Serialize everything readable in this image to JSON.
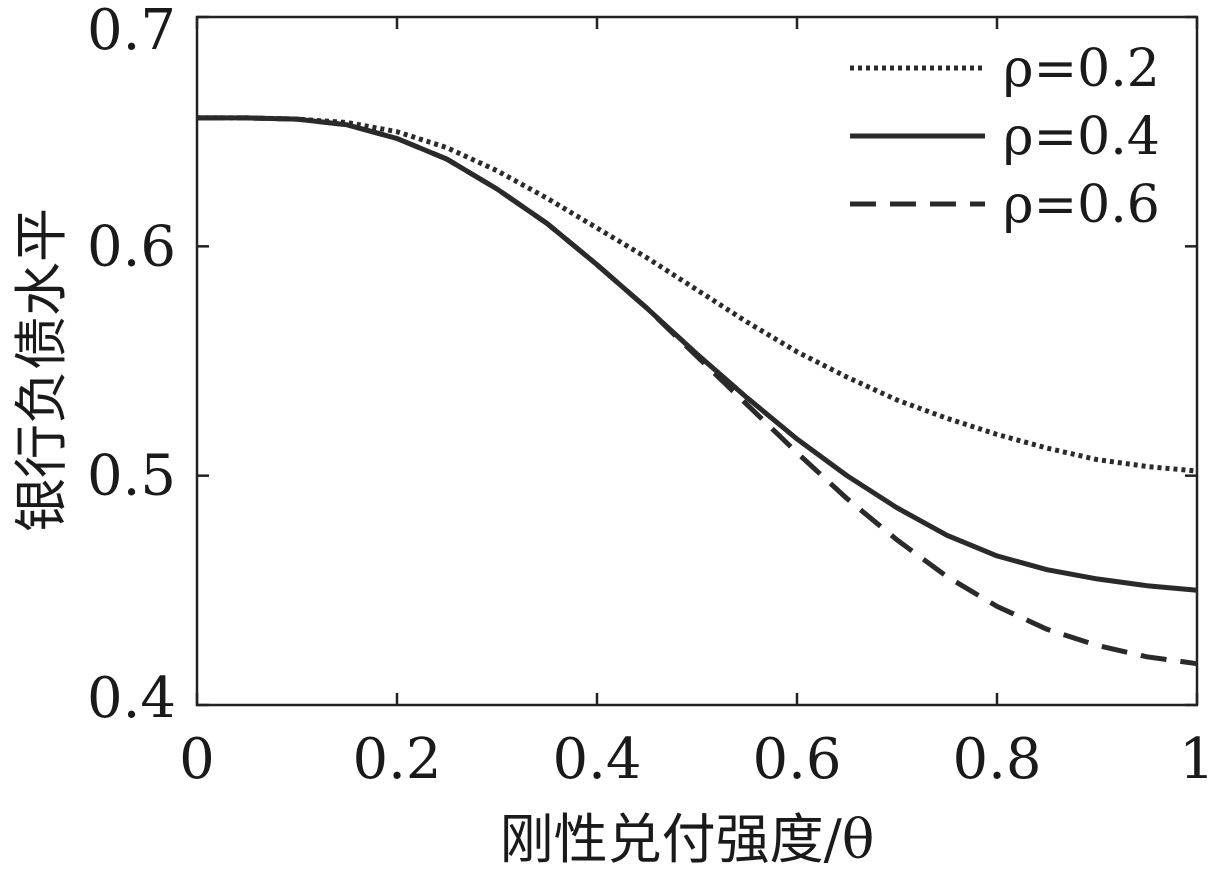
{
  "chart_data": {
    "type": "line",
    "xlabel": "刚性兑付强度/θ",
    "ylabel": "银行负债水平",
    "xlim": [
      0,
      1
    ],
    "ylim": [
      0.4,
      0.7
    ],
    "x_ticks": [
      "0",
      "0.2",
      "0.4",
      "0.6",
      "0.8",
      "1"
    ],
    "y_ticks": [
      "0.4",
      "0.5",
      "0.6",
      "0.7"
    ],
    "legend_position": "top-right",
    "x": [
      0,
      0.05,
      0.1,
      0.15,
      0.2,
      0.25,
      0.3,
      0.35,
      0.4,
      0.45,
      0.5,
      0.55,
      0.6,
      0.65,
      0.7,
      0.75,
      0.8,
      0.85,
      0.9,
      0.95,
      1.0
    ],
    "series": [
      {
        "name": "ρ=0.2",
        "style": "dotted",
        "values": [
          0.656,
          0.656,
          0.6555,
          0.654,
          0.65,
          0.643,
          0.633,
          0.621,
          0.608,
          0.595,
          0.581,
          0.567,
          0.554,
          0.543,
          0.533,
          0.525,
          0.518,
          0.512,
          0.507,
          0.504,
          0.502
        ]
      },
      {
        "name": "ρ=0.4",
        "style": "solid",
        "values": [
          0.656,
          0.656,
          0.6555,
          0.653,
          0.647,
          0.638,
          0.625,
          0.61,
          0.592,
          0.573,
          0.553,
          0.534,
          0.516,
          0.5,
          0.486,
          0.474,
          0.465,
          0.459,
          0.455,
          0.452,
          0.45
        ]
      },
      {
        "name": "ρ=0.6",
        "style": "dashed",
        "values": [
          0.656,
          0.656,
          0.6555,
          0.653,
          0.647,
          0.638,
          0.625,
          0.61,
          0.592,
          0.573,
          0.552,
          0.531,
          0.51,
          0.49,
          0.472,
          0.456,
          0.443,
          0.433,
          0.426,
          0.421,
          0.418
        ]
      }
    ]
  }
}
